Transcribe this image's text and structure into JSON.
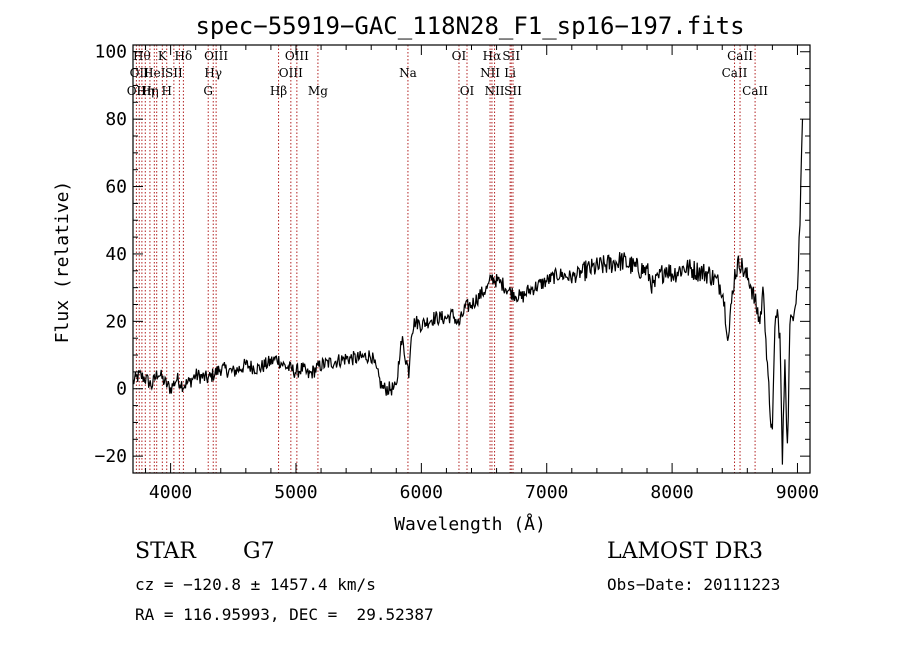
{
  "chart_data": {
    "type": "line",
    "title": "spec−55919−GAC_118N28_F1_sp16−197.fits",
    "xlabel": "Wavelength (Å)",
    "ylabel": "Flux (relative)",
    "xlim": [
      3700,
      9100
    ],
    "ylim": [
      -25,
      102
    ],
    "x_ticks": [
      4000,
      5000,
      6000,
      7000,
      8000,
      9000
    ],
    "y_ticks": [
      -20,
      0,
      20,
      40,
      60,
      80,
      100
    ],
    "y_tick_labels": [
      "−20",
      "0",
      "20",
      "40",
      "60",
      "80",
      "100"
    ],
    "grid": false,
    "legend": "none",
    "line_color": "#000000",
    "marker_color": "#b22222",
    "series": [
      {
        "x": [
          3700,
          3750,
          3800,
          3850,
          3900,
          3950,
          4000,
          4050,
          4100,
          4150,
          4200,
          4300,
          4400,
          4500,
          4600,
          4700,
          4800,
          4850,
          4900,
          4950,
          5000,
          5050,
          5100,
          5200,
          5300,
          5400,
          5500,
          5600,
          5680,
          5700,
          5720,
          5800,
          5830,
          5850,
          5870,
          5900,
          5920,
          5950,
          6000,
          6100,
          6200,
          6250,
          6300,
          6350,
          6400,
          6450,
          6500,
          6530,
          6560,
          6600,
          6650,
          6700,
          6750,
          6800,
          6850,
          6900,
          7000,
          7100,
          7200,
          7300,
          7400,
          7500,
          7600,
          7700,
          7800,
          7850,
          7900,
          7950,
          8000,
          8100,
          8200,
          8300,
          8400,
          8450,
          8480,
          8500,
          8540,
          8580,
          8620,
          8660,
          8700,
          8730,
          8760,
          8800,
          8820,
          8840,
          8860,
          8880,
          8900,
          8920,
          8940,
          8960,
          9000,
          9020,
          9040
        ],
        "y": [
          2,
          4,
          3,
          1,
          5,
          2,
          0,
          3,
          1,
          2,
          4,
          3,
          6,
          5,
          7,
          6,
          8,
          9,
          7,
          6,
          5,
          6,
          4,
          7,
          8,
          9,
          9,
          10,
          1,
          0,
          0,
          0,
          12,
          14,
          10,
          5,
          17,
          20,
          19,
          21,
          21,
          22,
          19,
          24,
          25,
          27,
          29,
          30,
          33,
          32,
          31,
          29,
          28,
          27,
          29,
          30,
          32,
          34,
          33,
          35,
          36,
          37,
          38,
          36,
          35,
          30,
          33,
          36,
          34,
          36,
          35,
          34,
          30,
          15,
          28,
          34,
          38,
          34,
          32,
          26,
          20,
          30,
          5,
          -15,
          20,
          22,
          16,
          -22,
          10,
          -18,
          18,
          22,
          30,
          50,
          80
        ]
      }
    ],
    "lines": [
      {
        "wl": 3727,
        "label": "OII",
        "row": 3
      },
      {
        "wl": 3750,
        "label": "OII",
        "row": 2
      },
      {
        "wl": 3771,
        "label": "Hθ",
        "row": 1
      },
      {
        "wl": 3798,
        "label": "Hη",
        "row": 3
      },
      {
        "wl": 3835,
        "label": "Hη",
        "row": 3
      },
      {
        "wl": 3870,
        "label": "HeI",
        "row": 2
      },
      {
        "wl": 3889,
        "label": "",
        "row": 0
      },
      {
        "wl": 3934,
        "label": "K",
        "row": 1
      },
      {
        "wl": 3969,
        "label": "H",
        "row": 3
      },
      {
        "wl": 4026,
        "label": "SII",
        "row": 2
      },
      {
        "wl": 4070,
        "label": "",
        "row": 0
      },
      {
        "wl": 4102,
        "label": "Hδ",
        "row": 1
      },
      {
        "wl": 4300,
        "label": "G",
        "row": 3
      },
      {
        "wl": 4340,
        "label": "Hγ",
        "row": 2
      },
      {
        "wl": 4363,
        "label": "OIII",
        "row": 1
      },
      {
        "wl": 4861,
        "label": "Hβ",
        "row": 3
      },
      {
        "wl": 4959,
        "label": "OIII",
        "row": 2
      },
      {
        "wl": 5007,
        "label": "OIII",
        "row": 1
      },
      {
        "wl": 5175,
        "label": "Mg",
        "row": 3
      },
      {
        "wl": 5893,
        "label": "Na",
        "row": 2
      },
      {
        "wl": 6300,
        "label": "OI",
        "row": 1
      },
      {
        "wl": 6364,
        "label": "OI",
        "row": 3
      },
      {
        "wl": 6548,
        "label": "NII",
        "row": 2
      },
      {
        "wl": 6563,
        "label": "Hα",
        "row": 1
      },
      {
        "wl": 6584,
        "label": "NII",
        "row": 3
      },
      {
        "wl": 6708,
        "label": "Li",
        "row": 2
      },
      {
        "wl": 6717,
        "label": "SII",
        "row": 1
      },
      {
        "wl": 6731,
        "label": "SII",
        "row": 3
      },
      {
        "wl": 8498,
        "label": "CaII",
        "row": 2
      },
      {
        "wl": 8542,
        "label": "CaII",
        "row": 1
      },
      {
        "wl": 8662,
        "label": "CaII",
        "row": 3
      }
    ]
  },
  "info": {
    "class": "STAR",
    "subclass": "G7",
    "survey": "LAMOST DR3",
    "cz": "cz = −120.8 ± 1457.4 km/s",
    "obs_date": "Obs−Date: 20111223",
    "radec": "RA = 116.95993, DEC =  29.52387"
  }
}
